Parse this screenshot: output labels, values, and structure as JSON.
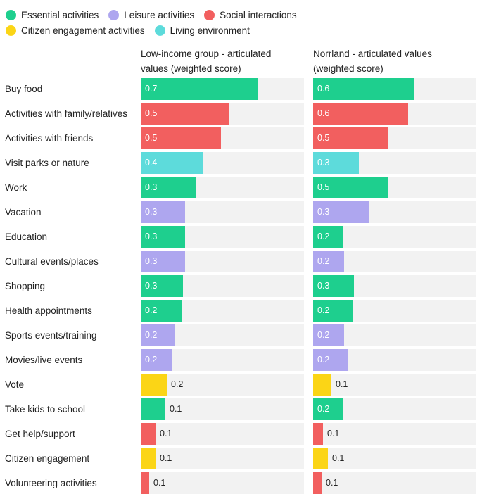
{
  "colors": {
    "essential": "#1ecf8e",
    "leisure": "#aea6ef",
    "social": "#f25f5f",
    "civic": "#fbd516",
    "living": "#5ddbdb",
    "track": "#f2f2f2"
  },
  "legend": [
    {
      "key": "essential",
      "label": "Essential activities"
    },
    {
      "key": "leisure",
      "label": "Leisure activities"
    },
    {
      "key": "social",
      "label": "Social interactions"
    },
    {
      "key": "civic",
      "label": "Citizen engagement activities"
    },
    {
      "key": "living",
      "label": "Living environment"
    }
  ],
  "chart_data": {
    "type": "bar",
    "orientation": "horizontal",
    "categories": [
      "Buy food",
      "Activities with family/relatives",
      "Activities with friends",
      "Visit parks or nature",
      "Work",
      "Vacation",
      "Education",
      "Cultural events/places",
      "Shopping",
      "Health appointments",
      "Sports events/training",
      "Movies/live events",
      "Vote",
      "Take kids to school",
      "Get help/support",
      "Citizen engagement",
      "Volunteering activities"
    ],
    "category_groups": [
      "essential",
      "social",
      "social",
      "living",
      "essential",
      "leisure",
      "essential",
      "leisure",
      "essential",
      "essential",
      "leisure",
      "leisure",
      "civic",
      "essential",
      "social",
      "civic",
      "social"
    ],
    "series": [
      {
        "name": "Low-income group - articulated values (weighted score)",
        "title_lines": [
          "Low-income group - articulated",
          "values (weighted score)"
        ],
        "values": [
          0.72,
          0.54,
          0.49,
          0.38,
          0.34,
          0.27,
          0.27,
          0.27,
          0.26,
          0.25,
          0.21,
          0.19,
          0.16,
          0.15,
          0.09,
          0.09,
          0.05
        ],
        "labels": [
          "0.7",
          "0.5",
          "0.5",
          "0.4",
          "0.3",
          "0.3",
          "0.3",
          "0.3",
          "0.3",
          "0.2",
          "0.2",
          "0.2",
          "0.2",
          "0.1",
          "0.1",
          "0.1",
          "0.1"
        ]
      },
      {
        "name": "Norrland - articulated values (weighted score)",
        "title_lines": [
          "Norrland - articulated values",
          "(weighted score)"
        ],
        "values": [
          0.62,
          0.58,
          0.46,
          0.28,
          0.46,
          0.34,
          0.18,
          0.19,
          0.25,
          0.24,
          0.19,
          0.21,
          0.11,
          0.18,
          0.06,
          0.09,
          0.05
        ],
        "labels": [
          "0.6",
          "0.6",
          "0.5",
          "0.3",
          "0.5",
          "0.3",
          "0.2",
          "0.2",
          "0.3",
          "0.2",
          "0.2",
          "0.2",
          "0.1",
          "0.2",
          "0.1",
          "0.1",
          "0.1"
        ]
      }
    ],
    "xlim": [
      0,
      1.0
    ],
    "grid": false,
    "legend_position": "top-left"
  }
}
